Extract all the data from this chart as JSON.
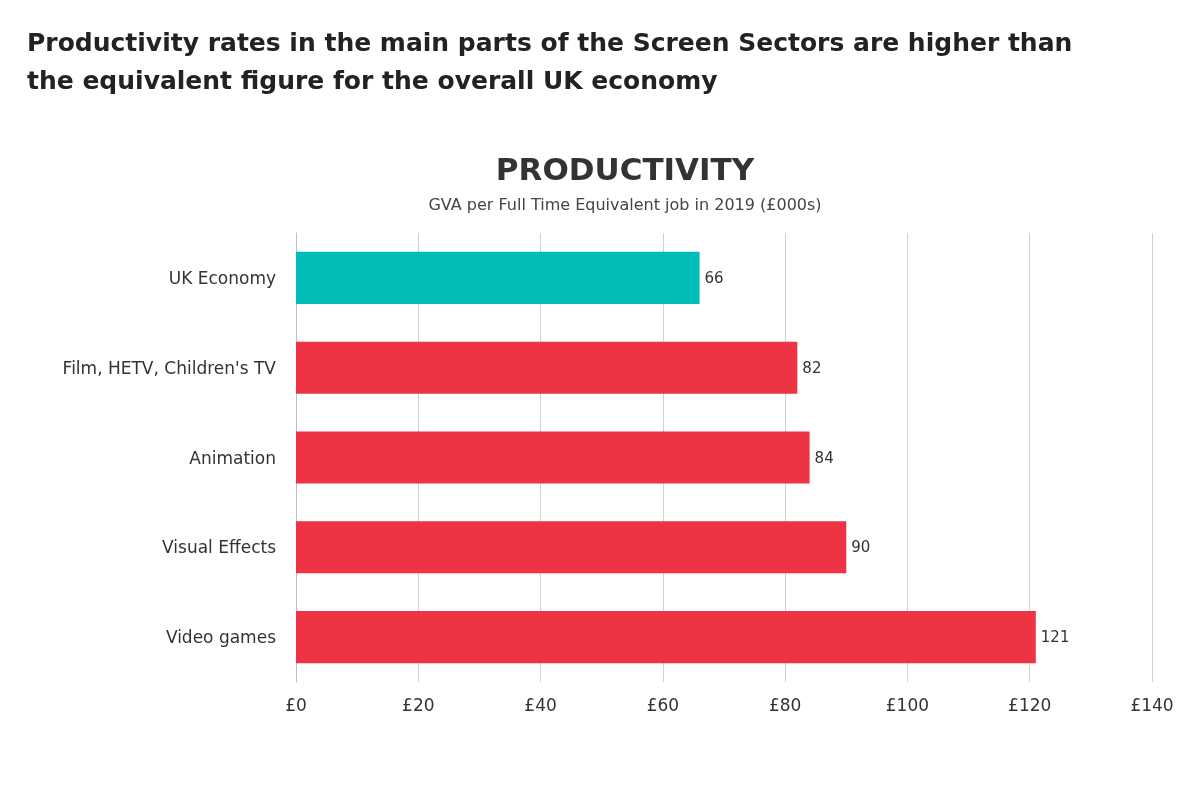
{
  "chart_data": {
    "type": "bar",
    "orientation": "horizontal",
    "title": "PRODUCTIVITY",
    "subtitle": "GVA per Full Time Equivalent job in 2019 (£000s)",
    "annotations": [
      "Productivity rates in the main parts of the Screen Sectors are higher than the equivalent figure for the overall UK economy"
    ],
    "categories": [
      "UK Economy",
      "Film, HETV, Children's TV",
      "Animation",
      "Visual Effects",
      "Video games"
    ],
    "values": [
      66,
      82,
      84,
      90,
      121
    ],
    "colors": [
      "#00bcb4",
      "#ee3344",
      "#ee3344",
      "#ee3344",
      "#ee3344"
    ],
    "data_labels": true,
    "xlim": [
      0,
      140
    ],
    "xticks": [
      {
        "value": 0,
        "label": "£0"
      },
      {
        "value": 20,
        "label": "£20"
      },
      {
        "value": 40,
        "label": "£40"
      },
      {
        "value": 60,
        "label": "£60"
      },
      {
        "value": 80,
        "label": "£80"
      },
      {
        "value": 100,
        "label": "£100"
      },
      {
        "value": 120,
        "label": "£120"
      },
      {
        "value": 140,
        "label": "£140"
      }
    ],
    "grid": "x"
  }
}
